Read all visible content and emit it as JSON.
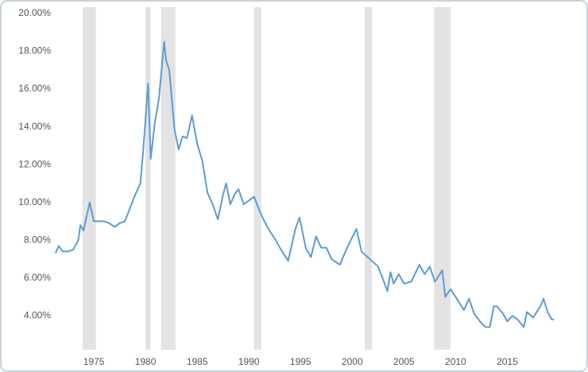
{
  "chart_data": {
    "type": "line",
    "x": [
      1971.3,
      1971.6,
      1972.0,
      1972.5,
      1973.0,
      1973.5,
      1973.7,
      1974.0,
      1974.6,
      1975.0,
      1975.5,
      1976.0,
      1976.5,
      1977.0,
      1977.5,
      1978.0,
      1978.5,
      1979.0,
      1979.5,
      1979.8,
      1980.25,
      1980.5,
      1980.9,
      1981.3,
      1981.8,
      1982.0,
      1982.3,
      1982.8,
      1983.2,
      1983.6,
      1984.0,
      1984.5,
      1985.0,
      1985.5,
      1986.0,
      1986.5,
      1987.0,
      1987.5,
      1987.8,
      1988.2,
      1988.7,
      1989.0,
      1989.5,
      1990.0,
      1990.5,
      1991.0,
      1991.5,
      1992.0,
      1992.6,
      1993.0,
      1993.8,
      1994.5,
      1994.9,
      1995.5,
      1996.0,
      1996.5,
      1997.0,
      1997.5,
      1998.0,
      1998.8,
      1999.5,
      2000.4,
      2000.9,
      2001.5,
      2001.9,
      2002.5,
      2003.0,
      2003.4,
      2003.7,
      2004.0,
      2004.5,
      2005.0,
      2005.7,
      2006.5,
      2007.0,
      2007.5,
      2008.0,
      2008.7,
      2009.0,
      2009.5,
      2010.0,
      2010.8,
      2011.3,
      2011.8,
      2012.5,
      2012.9,
      2013.3,
      2013.7,
      2014.0,
      2014.6,
      2015.0,
      2015.5,
      2016.0,
      2016.6,
      2016.9,
      2017.5,
      2018.3,
      2018.5,
      2018.9,
      2019.3,
      2019.5
    ],
    "series": [
      {
        "color": "#5b9bd5",
        "values": [
          7.3,
          7.7,
          7.4,
          7.4,
          7.5,
          8.0,
          8.8,
          8.5,
          10.0,
          9.0,
          9.0,
          9.0,
          8.9,
          8.7,
          8.9,
          9.0,
          9.7,
          10.4,
          11.0,
          12.9,
          16.3,
          12.3,
          14.2,
          15.5,
          18.5,
          17.5,
          17.0,
          13.9,
          12.8,
          13.5,
          13.4,
          14.6,
          13.1,
          12.2,
          10.5,
          9.9,
          9.1,
          10.4,
          11.0,
          9.9,
          10.5,
          10.7,
          9.9,
          10.1,
          10.3,
          9.6,
          9.0,
          8.5,
          8.0,
          7.6,
          6.9,
          8.6,
          9.2,
          7.6,
          7.1,
          8.2,
          7.6,
          7.6,
          7.0,
          6.7,
          7.6,
          8.6,
          7.4,
          7.1,
          6.9,
          6.6,
          5.9,
          5.3,
          6.3,
          5.7,
          6.2,
          5.7,
          5.8,
          6.7,
          6.2,
          6.6,
          5.8,
          6.4,
          5.0,
          5.4,
          5.0,
          4.3,
          4.9,
          4.1,
          3.6,
          3.4,
          3.4,
          4.5,
          4.5,
          4.1,
          3.7,
          4.0,
          3.8,
          3.4,
          4.2,
          3.9,
          4.6,
          4.9,
          4.2,
          3.8,
          3.8
        ]
      }
    ],
    "recessions": [
      [
        1973.9,
        1975.2
      ],
      [
        1980.0,
        1980.5
      ],
      [
        1981.5,
        1982.9
      ],
      [
        1990.5,
        1991.2
      ],
      [
        2001.2,
        2001.9
      ],
      [
        2007.9,
        2009.5
      ]
    ],
    "recession_color": "#e3e3e3",
    "xlim": [
      1971.15,
      2021.27
    ],
    "xticks": [
      1975,
      1980,
      1985,
      1990,
      1995,
      2000,
      2005,
      2010,
      2015
    ],
    "ylim": [
      2.2,
      20
    ],
    "yticks": [
      {
        "value": 4,
        "label": "4.00%"
      },
      {
        "value": 6,
        "label": "6.00%"
      },
      {
        "value": 8,
        "label": "8.00%"
      },
      {
        "value": 10,
        "label": "10.00%"
      },
      {
        "value": 12,
        "label": "12.00%"
      },
      {
        "value": 14,
        "label": "14.00%"
      },
      {
        "value": 16,
        "label": "16.00%"
      },
      {
        "value": 18,
        "label": "18.00%"
      },
      {
        "value": 20,
        "label": "20.00%"
      }
    ]
  }
}
